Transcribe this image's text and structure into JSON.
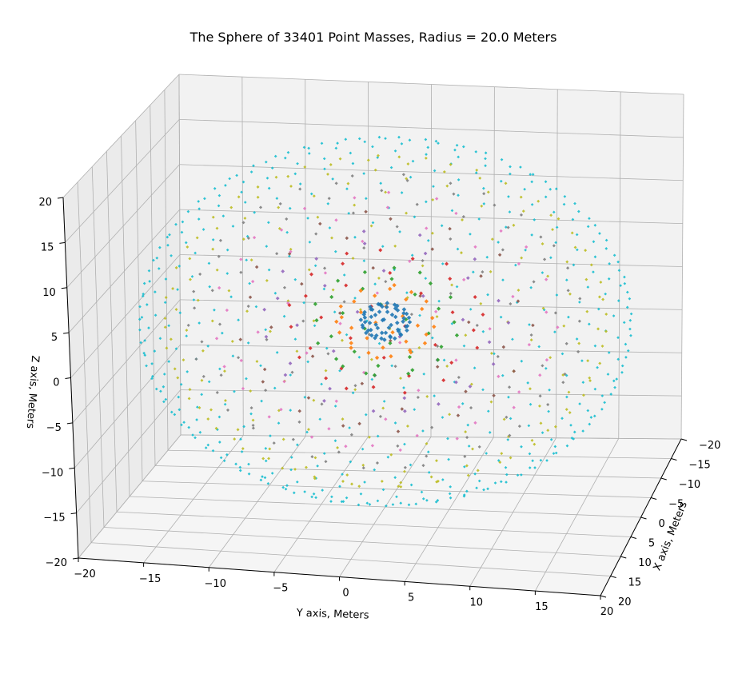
{
  "chart_data": {
    "type": "scatter",
    "projection": "3d",
    "title": "The Sphere of 33401 Point Masses, Radius = 20.0 Meters",
    "xlabel": "X axis, Meters",
    "ylabel": "Y axis, Meters",
    "zlabel": "Z axis, Meters",
    "xlim": [
      -20,
      20
    ],
    "ylim": [
      -20,
      20
    ],
    "zlim": [
      -20,
      20
    ],
    "x_ticks": [
      "−20",
      "−15",
      "−10",
      "−5",
      "0",
      "5",
      "10",
      "15",
      "20"
    ],
    "y_ticks": [
      "−20",
      "−15",
      "−10",
      "−5",
      "0",
      "5",
      "10",
      "15",
      "20"
    ],
    "z_ticks": [
      "−20",
      "−15",
      "−10",
      "−5",
      "0",
      "5",
      "10",
      "15",
      "20"
    ],
    "grid": true,
    "point_count": 33401,
    "radius_m": 20.0,
    "marker": "diamond",
    "colors": [
      "#1f77b4",
      "#ff7f0e",
      "#2ca02c",
      "#d62728",
      "#9467bd",
      "#8c564b",
      "#e377c2",
      "#7f7f7f",
      "#bcbd22",
      "#17becf"
    ],
    "shell_colors_outer_to_inner": [
      "#17becf",
      "#bcbd22",
      "#7f7f7f",
      "#e377c2",
      "#8c564b",
      "#9467bd",
      "#d62728",
      "#2ca02c",
      "#ff7f0e",
      "#1f77b4"
    ]
  }
}
